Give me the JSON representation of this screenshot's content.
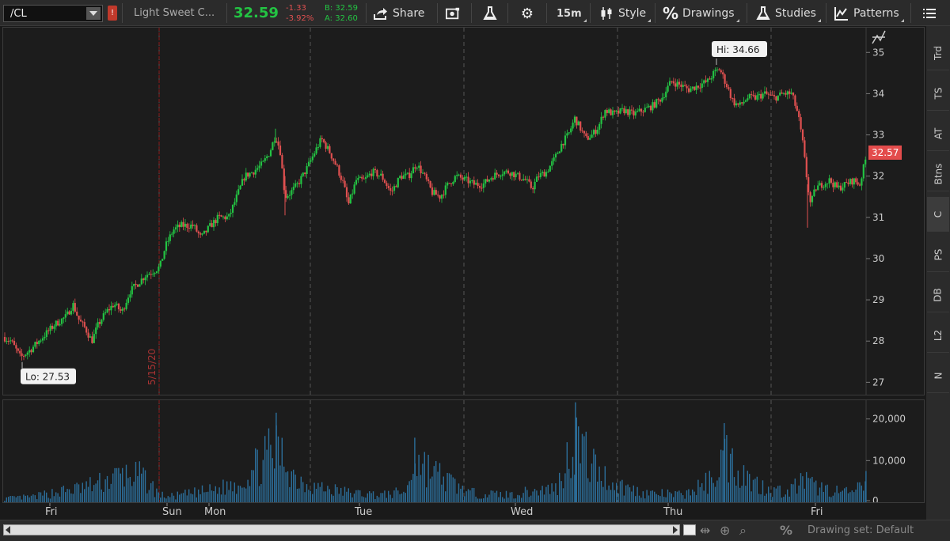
{
  "toolbar": {
    "symbol": "/CL",
    "description": "Light Sweet C...",
    "last_price": "32.59",
    "net_change": "-1.33",
    "pct_change": "-3.92%",
    "bid": "B: 32.59",
    "ask": "A: 32.60",
    "share_label": "Share",
    "timeframe_label": "15m",
    "style_label": "Style",
    "drawings_label": "Drawings",
    "studies_label": "Studies",
    "patterns_label": "Patterns",
    "colors": {
      "up": "#23c443",
      "down": "#e05050",
      "background": "#1c1c1c"
    }
  },
  "right_tabs": [
    "Trd",
    "TS",
    "AT",
    "Btns",
    "C",
    "PS",
    "DB",
    "L2",
    "N"
  ],
  "bottom": {
    "drawing_set": "Drawing set: Default"
  },
  "chart_data": [
    {
      "type": "candlestick",
      "instrument": "/CL",
      "interval": "15m",
      "y_ticks": [
        27,
        28,
        29,
        30,
        31,
        32,
        33,
        34,
        35
      ],
      "ylim": [
        26.7,
        35.6
      ],
      "x_day_labels": [
        "Fri",
        "Sun",
        "Mon",
        "Tue",
        "Wed",
        "Thu",
        "Fri"
      ],
      "session_separator_label": "5/15/20",
      "hi_label": "Hi: 34.66",
      "lo_label": "Lo: 27.53",
      "last_price_label": "32.57",
      "hi": 34.66,
      "lo": 27.53,
      "last": 32.57,
      "price_path": [
        [
          0,
          28.1
        ],
        [
          10,
          28.0
        ],
        [
          22,
          27.6
        ],
        [
          35,
          27.8
        ],
        [
          50,
          28.1
        ],
        [
          65,
          28.4
        ],
        [
          80,
          28.6
        ],
        [
          88,
          28.9
        ],
        [
          96,
          28.5
        ],
        [
          104,
          28.3
        ],
        [
          112,
          28.0
        ],
        [
          120,
          28.4
        ],
        [
          130,
          28.7
        ],
        [
          140,
          28.9
        ],
        [
          150,
          28.7
        ],
        [
          160,
          29.2
        ],
        [
          170,
          29.4
        ],
        [
          180,
          29.6
        ],
        [
          190,
          29.7
        ],
        [
          198,
          29.8
        ],
        [
          205,
          30.3
        ],
        [
          215,
          30.7
        ],
        [
          225,
          30.8
        ],
        [
          240,
          30.8
        ],
        [
          250,
          30.5
        ],
        [
          262,
          30.8
        ],
        [
          272,
          31.0
        ],
        [
          285,
          31.0
        ],
        [
          295,
          31.5
        ],
        [
          305,
          32.0
        ],
        [
          315,
          32.1
        ],
        [
          328,
          32.3
        ],
        [
          337,
          32.6
        ],
        [
          344,
          33.0
        ],
        [
          350,
          32.6
        ],
        [
          356,
          31.5
        ],
        [
          363,
          31.6
        ],
        [
          372,
          31.8
        ],
        [
          384,
          32.2
        ],
        [
          394,
          32.6
        ],
        [
          402,
          32.9
        ],
        [
          412,
          32.6
        ],
        [
          422,
          32.2
        ],
        [
          430,
          31.8
        ],
        [
          436,
          31.3
        ],
        [
          446,
          31.9
        ],
        [
          456,
          31.9
        ],
        [
          466,
          32.1
        ],
        [
          478,
          32.0
        ],
        [
          490,
          31.6
        ],
        [
          502,
          32.0
        ],
        [
          512,
          32.0
        ],
        [
          522,
          32.3
        ],
        [
          532,
          32.0
        ],
        [
          542,
          31.6
        ],
        [
          552,
          31.5
        ],
        [
          562,
          31.8
        ],
        [
          572,
          32.0
        ],
        [
          585,
          31.9
        ],
        [
          595,
          31.8
        ],
        [
          606,
          31.8
        ],
        [
          618,
          32.0
        ],
        [
          630,
          32.1
        ],
        [
          640,
          32.1
        ],
        [
          650,
          32.0
        ],
        [
          660,
          31.9
        ],
        [
          668,
          31.7
        ],
        [
          676,
          32.0
        ],
        [
          686,
          32.1
        ],
        [
          696,
          32.4
        ],
        [
          706,
          32.8
        ],
        [
          714,
          33.0
        ],
        [
          722,
          33.4
        ],
        [
          728,
          33.2
        ],
        [
          736,
          32.9
        ],
        [
          744,
          33.0
        ],
        [
          752,
          33.2
        ],
        [
          760,
          33.6
        ],
        [
          772,
          33.5
        ],
        [
          784,
          33.6
        ],
        [
          796,
          33.5
        ],
        [
          808,
          33.6
        ],
        [
          820,
          33.7
        ],
        [
          832,
          33.9
        ],
        [
          844,
          34.3
        ],
        [
          856,
          34.2
        ],
        [
          866,
          34.1
        ],
        [
          878,
          34.2
        ],
        [
          890,
          34.3
        ],
        [
          898,
          34.5
        ],
        [
          905,
          34.6
        ],
        [
          914,
          34.2
        ],
        [
          922,
          33.8
        ],
        [
          930,
          33.7
        ],
        [
          940,
          33.9
        ],
        [
          950,
          33.9
        ],
        [
          962,
          34.0
        ],
        [
          974,
          33.9
        ],
        [
          986,
          34.0
        ],
        [
          996,
          34.0
        ],
        [
          1004,
          33.5
        ],
        [
          1010,
          32.8
        ],
        [
          1016,
          31.8
        ],
        [
          1020,
          31.3
        ],
        [
          1026,
          31.7
        ],
        [
          1034,
          31.8
        ],
        [
          1044,
          31.9
        ],
        [
          1054,
          31.7
        ],
        [
          1064,
          31.8
        ],
        [
          1074,
          31.9
        ],
        [
          1082,
          31.8
        ],
        [
          1088,
          32.3
        ],
        [
          1092,
          32.6
        ]
      ]
    },
    {
      "type": "bar",
      "name": "Volume",
      "y_ticks": [
        0,
        10000,
        20000
      ],
      "y_tick_labels": [
        "0",
        "10,000",
        "20,000"
      ],
      "ylim": [
        0,
        24500
      ],
      "x_day_labels": [
        "Fri",
        "Sun",
        "Mon",
        "Tue",
        "Wed",
        "Thu",
        "Fri"
      ],
      "volume_profile": [
        [
          0,
          1000
        ],
        [
          40,
          1500
        ],
        [
          60,
          2500
        ],
        [
          90,
          3500
        ],
        [
          120,
          5000
        ],
        [
          150,
          7500
        ],
        [
          175,
          7000
        ],
        [
          198,
          2000
        ],
        [
          210,
          1500
        ],
        [
          240,
          2500
        ],
        [
          270,
          3500
        ],
        [
          300,
          5500
        ],
        [
          330,
          12000
        ],
        [
          345,
          14000
        ],
        [
          355,
          12000
        ],
        [
          370,
          6500
        ],
        [
          400,
          4000
        ],
        [
          440,
          2500
        ],
        [
          480,
          2000
        ],
        [
          510,
          3000
        ],
        [
          520,
          12000
        ],
        [
          535,
          9500
        ],
        [
          560,
          6000
        ],
        [
          590,
          2500
        ],
        [
          640,
          2000
        ],
        [
          700,
          4000
        ],
        [
          718,
          15000
        ],
        [
          725,
          17500
        ],
        [
          740,
          11000
        ],
        [
          770,
          5000
        ],
        [
          810,
          2500
        ],
        [
          860,
          2000
        ],
        [
          895,
          6000
        ],
        [
          910,
          13500
        ],
        [
          925,
          10000
        ],
        [
          950,
          5000
        ],
        [
          990,
          2500
        ],
        [
          1010,
          6000
        ],
        [
          1022,
          4500
        ],
        [
          1040,
          3500
        ],
        [
          1070,
          2500
        ],
        [
          1085,
          4000
        ],
        [
          1090,
          7000
        ]
      ]
    }
  ]
}
